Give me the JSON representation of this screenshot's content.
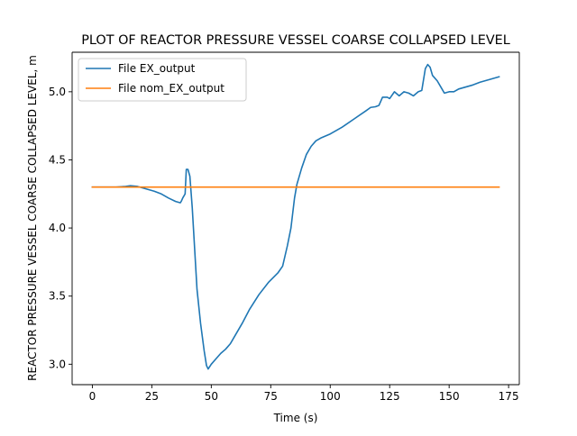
{
  "chart_data": {
    "type": "line",
    "title": "PLOT OF REACTOR PRESSURE VESSEL COARSE COLLAPSED LEVEL",
    "xlabel": "Time (s)",
    "ylabel": "REACTOR PRESSURE VESSEL COARSE COLLAPSED LEVEL, m",
    "xlim": [
      -8.5,
      179.5
    ],
    "ylim": [
      2.85,
      5.29
    ],
    "xticks": [
      0,
      25,
      50,
      75,
      100,
      125,
      150,
      175
    ],
    "yticks": [
      3.0,
      3.5,
      4.0,
      4.5,
      5.0
    ],
    "legend_position": "top-left",
    "grid": false,
    "series": [
      {
        "name": "File EX_output",
        "color": "#1f77b4",
        "points": [
          [
            0,
            4.3
          ],
          [
            5,
            4.3
          ],
          [
            10,
            4.3
          ],
          [
            14,
            4.305
          ],
          [
            16,
            4.31
          ],
          [
            19,
            4.305
          ],
          [
            22,
            4.29
          ],
          [
            26,
            4.27
          ],
          [
            29,
            4.25
          ],
          [
            32,
            4.22
          ],
          [
            35,
            4.195
          ],
          [
            37,
            4.185
          ],
          [
            37.5,
            4.2
          ],
          [
            38,
            4.22
          ],
          [
            39,
            4.25
          ],
          [
            39.5,
            4.43
          ],
          [
            40.2,
            4.43
          ],
          [
            41,
            4.38
          ],
          [
            42,
            4.15
          ],
          [
            43,
            3.85
          ],
          [
            44,
            3.55
          ],
          [
            45.5,
            3.3
          ],
          [
            47,
            3.1
          ],
          [
            48,
            2.99
          ],
          [
            48.7,
            2.965
          ],
          [
            50,
            3.0
          ],
          [
            52,
            3.04
          ],
          [
            54,
            3.08
          ],
          [
            56,
            3.11
          ],
          [
            58,
            3.15
          ],
          [
            60,
            3.21
          ],
          [
            63,
            3.3
          ],
          [
            66,
            3.4
          ],
          [
            70,
            3.51
          ],
          [
            74,
            3.6
          ],
          [
            78,
            3.67
          ],
          [
            80,
            3.72
          ],
          [
            82,
            3.87
          ],
          [
            83.5,
            4.0
          ],
          [
            85,
            4.22
          ],
          [
            86,
            4.32
          ],
          [
            88,
            4.44
          ],
          [
            90,
            4.54
          ],
          [
            92,
            4.6
          ],
          [
            94,
            4.64
          ],
          [
            96,
            4.66
          ],
          [
            100,
            4.69
          ],
          [
            105,
            4.74
          ],
          [
            110,
            4.8
          ],
          [
            115,
            4.86
          ],
          [
            117,
            4.885
          ],
          [
            119,
            4.89
          ],
          [
            120.5,
            4.9
          ],
          [
            122,
            4.96
          ],
          [
            124,
            4.96
          ],
          [
            125,
            4.95
          ],
          [
            127,
            5.0
          ],
          [
            129,
            4.97
          ],
          [
            131,
            5.0
          ],
          [
            133,
            4.99
          ],
          [
            135,
            4.97
          ],
          [
            137,
            5.0
          ],
          [
            138.5,
            5.01
          ],
          [
            140,
            5.17
          ],
          [
            141,
            5.2
          ],
          [
            142,
            5.18
          ],
          [
            143,
            5.12
          ],
          [
            145,
            5.08
          ],
          [
            147,
            5.02
          ],
          [
            148,
            4.99
          ],
          [
            150,
            5.0
          ],
          [
            152,
            5.0
          ],
          [
            154,
            5.02
          ],
          [
            156,
            5.03
          ],
          [
            158,
            5.04
          ],
          [
            160,
            5.05
          ],
          [
            163,
            5.07
          ],
          [
            167,
            5.09
          ],
          [
            171,
            5.11
          ]
        ]
      },
      {
        "name": "File nom_EX_output",
        "color": "#ff7f0e",
        "points": [
          [
            0,
            4.3
          ],
          [
            171,
            4.3
          ]
        ]
      }
    ]
  }
}
